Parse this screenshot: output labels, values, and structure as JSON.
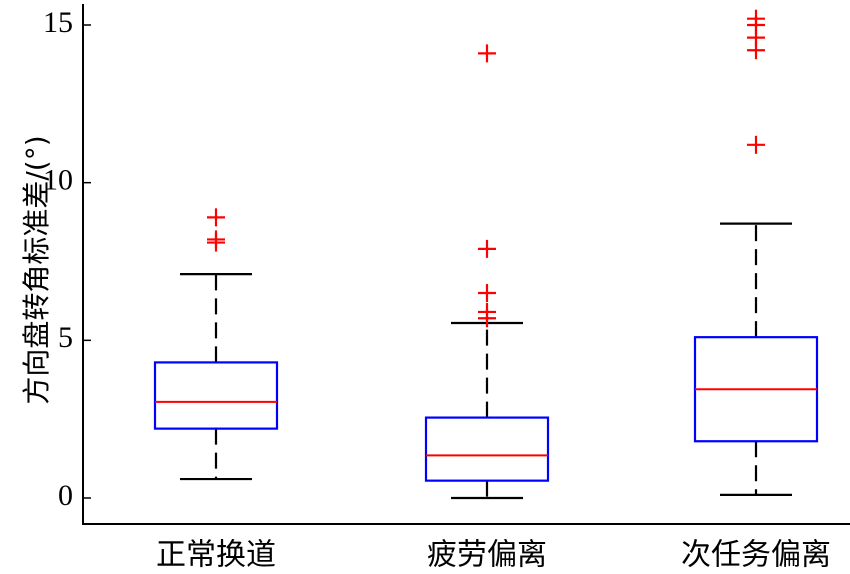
{
  "chart_data": {
    "type": "box",
    "title": "",
    "xlabel": "",
    "ylabel": "方向盘转角标准差/(°)",
    "ylim": [
      0,
      15.3
    ],
    "yticks": [
      0,
      5,
      10,
      15
    ],
    "grid": false,
    "colors": {
      "box": "#0000ff",
      "median": "#ff0000",
      "whisker": "#000000",
      "outlier": "#ff0000"
    },
    "categories": [
      "正常换道",
      "疲劳偏离",
      "次任务偏离"
    ],
    "boxes": [
      {
        "whisker_low": 0.6,
        "q1": 2.2,
        "median": 3.05,
        "q3": 4.3,
        "whisker_high": 7.1,
        "outliers": [
          8.1,
          8.2,
          8.9
        ]
      },
      {
        "whisker_low": 0.0,
        "q1": 0.55,
        "median": 1.35,
        "q3": 2.55,
        "whisker_high": 5.55,
        "outliers": [
          5.7,
          5.9,
          6.5,
          7.9,
          14.1
        ]
      },
      {
        "whisker_low": 0.1,
        "q1": 1.8,
        "median": 3.45,
        "q3": 5.1,
        "whisker_high": 8.7,
        "outliers": [
          11.2,
          14.2,
          14.6,
          15.0,
          15.2
        ]
      }
    ]
  }
}
